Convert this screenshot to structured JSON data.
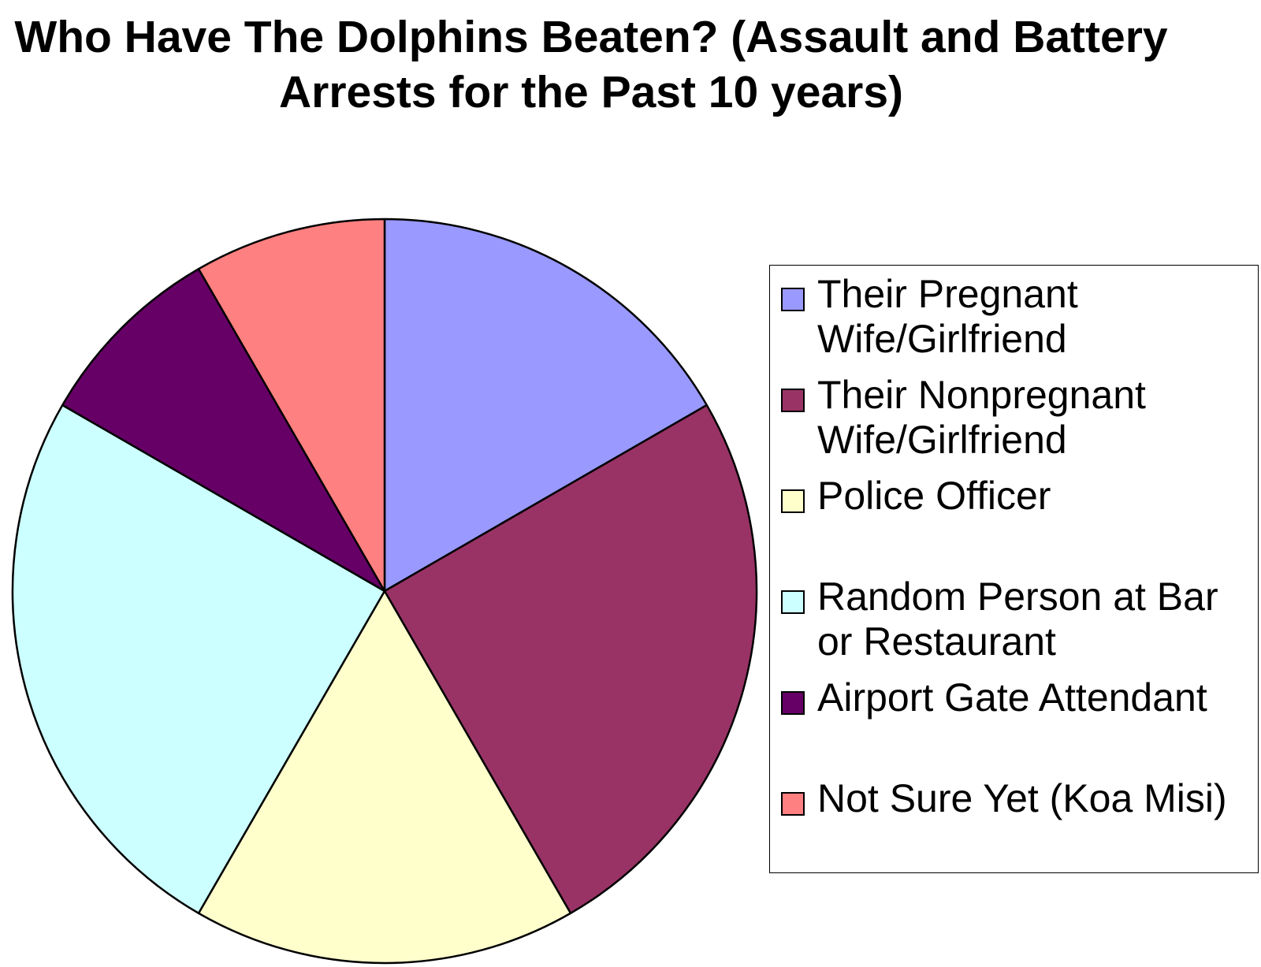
{
  "chart_data": {
    "type": "pie",
    "title": [
      "Who Have The Dolphins Beaten? (Assault and Battery",
      "Arrests for the Past 10 years)"
    ],
    "start_angle_deg": 0,
    "direction": "clockwise",
    "legend_position": "right",
    "slices": [
      {
        "label": [
          "Their Pregnant",
          "Wife/Girlfriend"
        ],
        "value": 2,
        "color": "#9999ff"
      },
      {
        "label": [
          "Their Nonpregnant",
          "Wife/Girlfriend"
        ],
        "value": 3,
        "color": "#993366"
      },
      {
        "label": [
          "Police Officer"
        ],
        "value": 2,
        "color": "#ffffcc"
      },
      {
        "label": [
          "Random Person at Bar",
          "or Restaurant"
        ],
        "value": 3,
        "color": "#ccffff"
      },
      {
        "label": [
          "Airport Gate Attendant"
        ],
        "value": 1,
        "color": "#660066"
      },
      {
        "label": [
          "Not Sure Yet (Koa Misi)"
        ],
        "value": 1,
        "color": "#ff8080"
      }
    ]
  }
}
